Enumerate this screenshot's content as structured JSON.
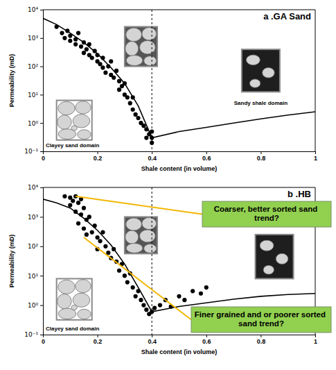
{
  "chart_data": [
    {
      "type": "scatter",
      "title": "a .GA Sand",
      "x_label": "Shale content (in volume)",
      "y_label": "Permeability (mD)",
      "log": "y",
      "xlim": [
        0,
        1
      ],
      "ylim": [
        0.1,
        10000
      ],
      "xticks": [
        0,
        0.2,
        0.4,
        0.6,
        0.8,
        1
      ],
      "yticks": [
        {
          "value": 0.1,
          "label": "10⁻¹"
        },
        {
          "value": 1,
          "label": "10⁰"
        },
        {
          "value": 10,
          "label": "10¹"
        },
        {
          "value": 100,
          "label": "10²"
        },
        {
          "value": 1000,
          "label": "10³"
        },
        {
          "value": 10000,
          "label": "10⁴"
        }
      ],
      "color": "#000000",
      "marker": "circle",
      "x": [
        0.05,
        0.07,
        0.08,
        0.09,
        0.1,
        0.1,
        0.12,
        0.12,
        0.13,
        0.14,
        0.15,
        0.15,
        0.16,
        0.17,
        0.17,
        0.18,
        0.19,
        0.2,
        0.2,
        0.21,
        0.22,
        0.22,
        0.23,
        0.24,
        0.25,
        0.25,
        0.26,
        0.27,
        0.28,
        0.28,
        0.29,
        0.3,
        0.3,
        0.31,
        0.32,
        0.33,
        0.33,
        0.34,
        0.35,
        0.36,
        0.37,
        0.38,
        0.39,
        0.4,
        0.4,
        0.4,
        0.38
      ],
      "values": [
        2500,
        1500,
        1000,
        1800,
        800,
        1200,
        600,
        900,
        1500,
        500,
        300,
        700,
        400,
        250,
        600,
        200,
        350,
        150,
        250,
        120,
        200,
        90,
        60,
        100,
        50,
        150,
        40,
        70,
        30,
        15,
        20,
        10,
        25,
        8,
        5,
        3,
        8,
        2,
        1.5,
        1,
        0.8,
        0.6,
        0.4,
        0.3,
        0.5,
        0.2,
        0.3
      ],
      "curve": {
        "x": [
          0,
          0.05,
          0.1,
          0.15,
          0.2,
          0.25,
          0.3,
          0.35,
          0.4,
          0.5,
          0.6,
          0.7,
          0.8,
          0.9,
          1
        ],
        "values": [
          5000,
          3000,
          1500,
          700,
          280,
          90,
          25,
          4,
          0.3,
          0.5,
          0.7,
          1,
          1.4,
          1.9,
          2.5
        ]
      },
      "divider": 0.4,
      "inset_labels": [
        "Clayey sand domain",
        null,
        "Sandy shale domain"
      ],
      "annotations": []
    },
    {
      "type": "scatter",
      "title": "b .HB",
      "x_label": "Shale content (in volume)",
      "y_label": "Permeability (mD)",
      "log": "y",
      "xlim": [
        0,
        1
      ],
      "ylim": [
        0.1,
        10000
      ],
      "xticks": [
        0,
        0.2,
        0.4,
        0.6,
        0.8,
        1
      ],
      "yticks": [
        {
          "value": 0.1,
          "label": "10⁻¹"
        },
        {
          "value": 1,
          "label": "10⁰"
        },
        {
          "value": 10,
          "label": "10¹"
        },
        {
          "value": 100,
          "label": "10²"
        },
        {
          "value": 1000,
          "label": "10³"
        },
        {
          "value": 10000,
          "label": "10⁴"
        }
      ],
      "color": "#000000",
      "marker": "circle",
      "x": [
        0.08,
        0.1,
        0.11,
        0.12,
        0.13,
        0.14,
        0.1,
        0.12,
        0.14,
        0.15,
        0.16,
        0.13,
        0.15,
        0.17,
        0.18,
        0.16,
        0.19,
        0.2,
        0.21,
        0.22,
        0.2,
        0.23,
        0.24,
        0.25,
        0.26,
        0.27,
        0.28,
        0.29,
        0.3,
        0.31,
        0.32,
        0.33,
        0.34,
        0.35,
        0.36,
        0.37,
        0.38,
        0.39,
        0.4,
        0.41,
        0.43,
        0.45,
        0.47,
        0.5,
        0.52,
        0.55,
        0.58,
        0.6
      ],
      "values": [
        5000,
        4500,
        3500,
        5000,
        3000,
        4000,
        2500,
        1500,
        1200,
        2000,
        800,
        600,
        400,
        1000,
        300,
        250,
        500,
        200,
        150,
        300,
        80,
        100,
        60,
        40,
        80,
        30,
        15,
        25,
        10,
        6,
        12,
        4,
        2,
        3,
        1.5,
        1,
        0.7,
        0.5,
        0.6,
        0.8,
        1,
        1.5,
        0.9,
        2,
        1.5,
        3,
        2.5,
        4
      ],
      "curve": {
        "x": [
          0,
          0.05,
          0.1,
          0.15,
          0.2,
          0.25,
          0.3,
          0.35,
          0.4,
          0.5,
          0.6,
          0.7,
          0.8,
          0.9,
          1
        ],
        "values": [
          4000,
          3000,
          2000,
          900,
          350,
          110,
          25,
          4,
          0.6,
          0.9,
          1.2,
          1.6,
          2,
          2.3,
          2.5
        ]
      },
      "divider": 0.4,
      "inset_labels": [
        "Clayey sand domain",
        null,
        null
      ],
      "annotations": [
        {
          "text": "Coarser, better sorted sand trend?",
          "x": 0.12,
          "y": 5000
        },
        {
          "text": "Finer grained and or poorer sorted sand trend?",
          "x": 0.15,
          "y": 200
        }
      ]
    }
  ]
}
